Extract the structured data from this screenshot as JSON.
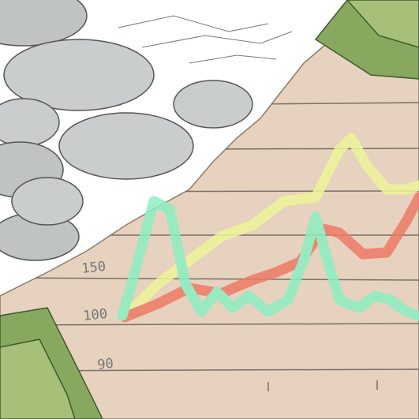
{
  "labels": [
    "150",
    "100",
    "90"
  ]
}
